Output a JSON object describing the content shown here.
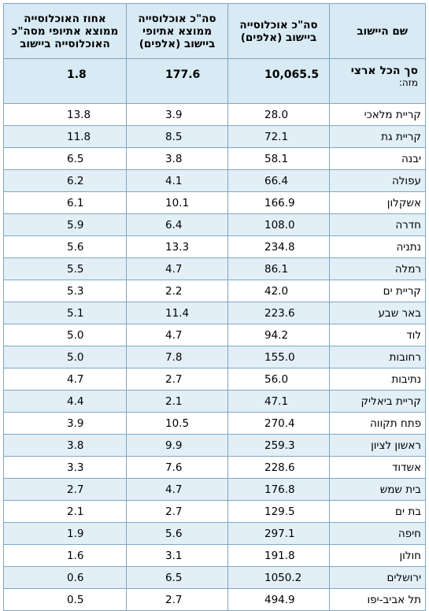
{
  "headers": {
    "name": "שם היישוב",
    "pop": [
      "סה\"כ אוכלוסייה",
      "ביישוב (אלפים)"
    ],
    "eth": [
      "סה\"כ אוכלוסייה",
      "ממוצא אתיופי",
      "ביישוב (אלפים)"
    ],
    "pct": [
      "אחוז האוכלוסייה",
      "ממוצא אתיופי מסה\"כ",
      "האוכלוסייה ביישוב"
    ]
  },
  "total": {
    "name": "סך הכל ארצי",
    "note": "מזה:",
    "pop": "10,065.5",
    "eth": "177.6",
    "pct": "1.8"
  },
  "rows": [
    {
      "name": "קריית מלאכי",
      "pop": "28.0",
      "eth": "3.9",
      "pct": "13.8"
    },
    {
      "name": "קריית גת",
      "pop": "72.1",
      "eth": "8.5",
      "pct": "11.8"
    },
    {
      "name": "יבנה",
      "pop": "58.1",
      "eth": "3.8",
      "pct": "6.5"
    },
    {
      "name": "עפולה",
      "pop": "66.4",
      "eth": "4.1",
      "pct": "6.2"
    },
    {
      "name": "אשקלון",
      "pop": "166.9",
      "eth": "10.1",
      "pct": "6.1"
    },
    {
      "name": "חדרה",
      "pop": "108.0",
      "eth": "6.4",
      "pct": "5.9"
    },
    {
      "name": "נתניה",
      "pop": "234.8",
      "eth": "13.3",
      "pct": "5.6"
    },
    {
      "name": "רמלה",
      "pop": "86.1",
      "eth": "4.7",
      "pct": "5.5"
    },
    {
      "name": "קריית ים",
      "pop": "42.0",
      "eth": "2.2",
      "pct": "5.3"
    },
    {
      "name": "באר שבע",
      "pop": "223.6",
      "eth": "11.4",
      "pct": "5.1"
    },
    {
      "name": "לוד",
      "pop": "94.2",
      "eth": "4.7",
      "pct": "5.0"
    },
    {
      "name": "רחובות",
      "pop": "155.0",
      "eth": "7.8",
      "pct": "5.0"
    },
    {
      "name": "נתיבות",
      "pop": "56.0",
      "eth": "2.7",
      "pct": "4.7"
    },
    {
      "name": "קריית ביאליק",
      "pop": "47.1",
      "eth": "2.1",
      "pct": "4.4"
    },
    {
      "name": "פתח תקווה",
      "pop": "270.4",
      "eth": "10.5",
      "pct": "3.9"
    },
    {
      "name": "ראשון לציון",
      "pop": "259.3",
      "eth": "9.9",
      "pct": "3.8"
    },
    {
      "name": "אשדוד",
      "pop": "228.6",
      "eth": "7.6",
      "pct": "3.3"
    },
    {
      "name": "בית שמש",
      "pop": "176.8",
      "eth": "4.7",
      "pct": "2.7"
    },
    {
      "name": "בת ים",
      "pop": "129.5",
      "eth": "2.7",
      "pct": "2.1"
    },
    {
      "name": "חיפה",
      "pop": "297.1",
      "eth": "5.6",
      "pct": "1.9"
    },
    {
      "name": "חולון",
      "pop": "191.8",
      "eth": "3.1",
      "pct": "1.6"
    },
    {
      "name": "ירושלים",
      "pop": "1050.2",
      "eth": "6.5",
      "pct": "0.6"
    },
    {
      "name": "תל אביב-יפו",
      "pop": "494.9",
      "eth": "2.7",
      "pct": "0.5"
    }
  ]
}
